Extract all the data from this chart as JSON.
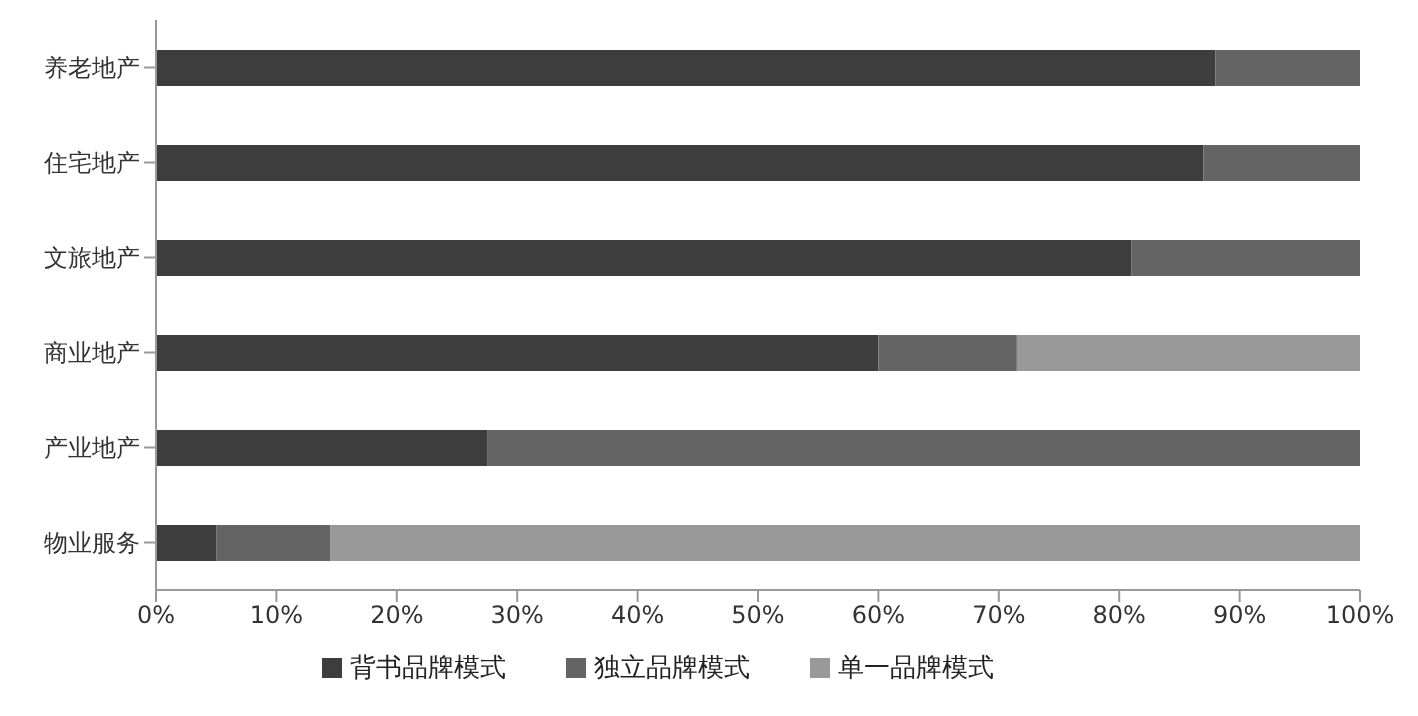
{
  "chart_data": {
    "type": "bar",
    "orientation": "horizontal",
    "stacked": true,
    "categories": [
      "养老地产",
      "住宅地产",
      "文旅地产",
      "商业地产",
      "产业地产",
      "物业服务"
    ],
    "series": [
      {
        "name": "背书品牌模式",
        "color": "#3d3d3d",
        "values": [
          88,
          87,
          81,
          60,
          27.5,
          5
        ]
      },
      {
        "name": "独立品牌模式",
        "color": "#646464",
        "values": [
          12,
          13,
          19,
          11.5,
          72.5,
          9.5
        ]
      },
      {
        "name": "单一品牌模式",
        "color": "#999999",
        "values": [
          0,
          0,
          0,
          28.5,
          0,
          85.5
        ]
      }
    ],
    "xlim": [
      0,
      100
    ],
    "xticks": [
      {
        "value": 0,
        "label": "0%"
      },
      {
        "value": 10,
        "label": "10%"
      },
      {
        "value": 20,
        "label": "20%"
      },
      {
        "value": 30,
        "label": "30%"
      },
      {
        "value": 40,
        "label": "40%"
      },
      {
        "value": 50,
        "label": "50%"
      },
      {
        "value": 60,
        "label": "60%"
      },
      {
        "value": 70,
        "label": "70%"
      },
      {
        "value": 80,
        "label": "80%"
      },
      {
        "value": 90,
        "label": "90%"
      },
      {
        "value": 100,
        "label": "100%"
      }
    ],
    "grid": false,
    "legend": "bottom"
  }
}
